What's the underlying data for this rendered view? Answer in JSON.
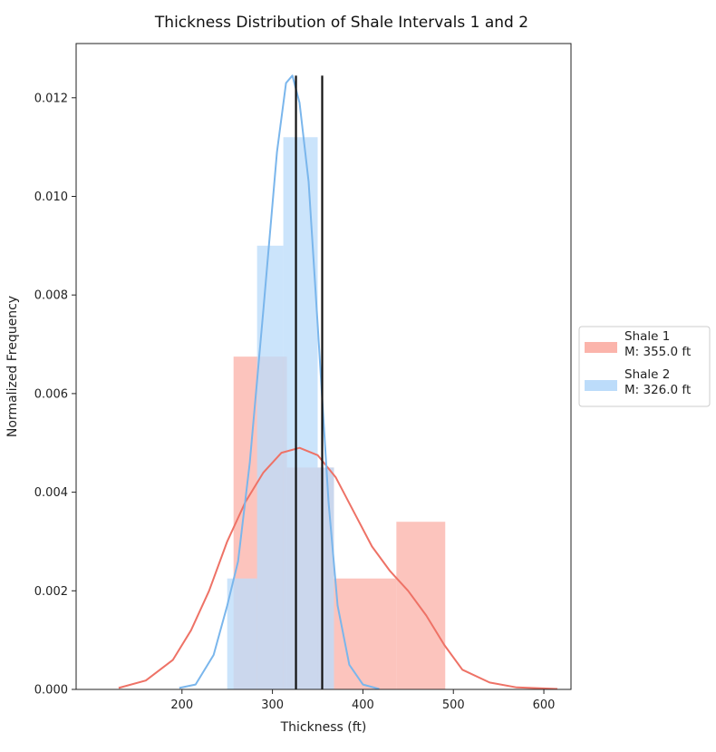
{
  "chart_data": {
    "type": "bar",
    "title": "Thickness Distribution of Shale Intervals 1 and 2",
    "xlabel": "Thickness (ft)",
    "ylabel": "Normalized Frequency",
    "xlim": [
      83,
      630
    ],
    "ylim": [
      0,
      0.0131
    ],
    "xticks": [
      200,
      300,
      400,
      500,
      600
    ],
    "xtick_labels": [
      "200",
      "300",
      "400",
      "500",
      "600"
    ],
    "yticks": [
      0,
      0.002,
      0.004,
      0.006,
      0.008,
      0.01,
      0.012
    ],
    "ytick_labels": [
      "0.000",
      "0.002",
      "0.004",
      "0.006",
      "0.008",
      "0.010",
      "0.012"
    ],
    "grid": false,
    "legend_position": "right-outside",
    "series": [
      {
        "name": "Shale 1",
        "legend_label": "Shale 1\nM: 355.0 ft",
        "median": 355.0,
        "bar_color": "#fbb4ab",
        "kde_color": "#ee7266",
        "bins": [
          {
            "x0": 257,
            "x1": 316,
            "value": 0.00675
          },
          {
            "x0": 316,
            "x1": 368,
            "value": 0.0045
          },
          {
            "x0": 368,
            "x1": 437,
            "value": 0.00225
          },
          {
            "x0": 437,
            "x1": 491,
            "value": 0.0034
          }
        ],
        "kde": [
          [
            130,
            3e-05
          ],
          [
            160,
            0.00018
          ],
          [
            190,
            0.0006
          ],
          [
            210,
            0.0012
          ],
          [
            230,
            0.002
          ],
          [
            250,
            0.003
          ],
          [
            270,
            0.0038
          ],
          [
            290,
            0.0044
          ],
          [
            310,
            0.0048
          ],
          [
            330,
            0.0049
          ],
          [
            350,
            0.00475
          ],
          [
            370,
            0.0043
          ],
          [
            390,
            0.0036
          ],
          [
            410,
            0.0029
          ],
          [
            430,
            0.0024
          ],
          [
            450,
            0.002
          ],
          [
            470,
            0.0015
          ],
          [
            490,
            0.0009
          ],
          [
            510,
            0.0004
          ],
          [
            540,
            0.00014
          ],
          [
            570,
            4e-05
          ],
          [
            615,
            1e-05
          ]
        ]
      },
      {
        "name": "Shale 2",
        "legend_label": "Shale 2\nM: 326.0 ft",
        "median": 326.0,
        "bar_color": "#bcdcfa",
        "kde_color": "#7ab6ec",
        "bins": [
          {
            "x0": 250,
            "x1": 283,
            "value": 0.00225
          },
          {
            "x0": 283,
            "x1": 312,
            "value": 0.009
          },
          {
            "x0": 312,
            "x1": 350,
            "value": 0.0112
          },
          {
            "x0": 350,
            "x1": 368,
            "value": 0.0045
          }
        ],
        "kde": [
          [
            197,
            3e-05
          ],
          [
            215,
            0.0001
          ],
          [
            235,
            0.0007
          ],
          [
            250,
            0.0017
          ],
          [
            262,
            0.0026
          ],
          [
            275,
            0.0046
          ],
          [
            290,
            0.0077
          ],
          [
            305,
            0.0109
          ],
          [
            315,
            0.0123
          ],
          [
            322,
            0.01245
          ],
          [
            330,
            0.0119
          ],
          [
            340,
            0.0103
          ],
          [
            350,
            0.0074
          ],
          [
            362,
            0.0038
          ],
          [
            372,
            0.0017
          ],
          [
            385,
            0.0005
          ],
          [
            400,
            0.0001
          ],
          [
            418,
            1e-05
          ]
        ]
      }
    ],
    "median_lines": {
      "color": "#111111"
    }
  }
}
